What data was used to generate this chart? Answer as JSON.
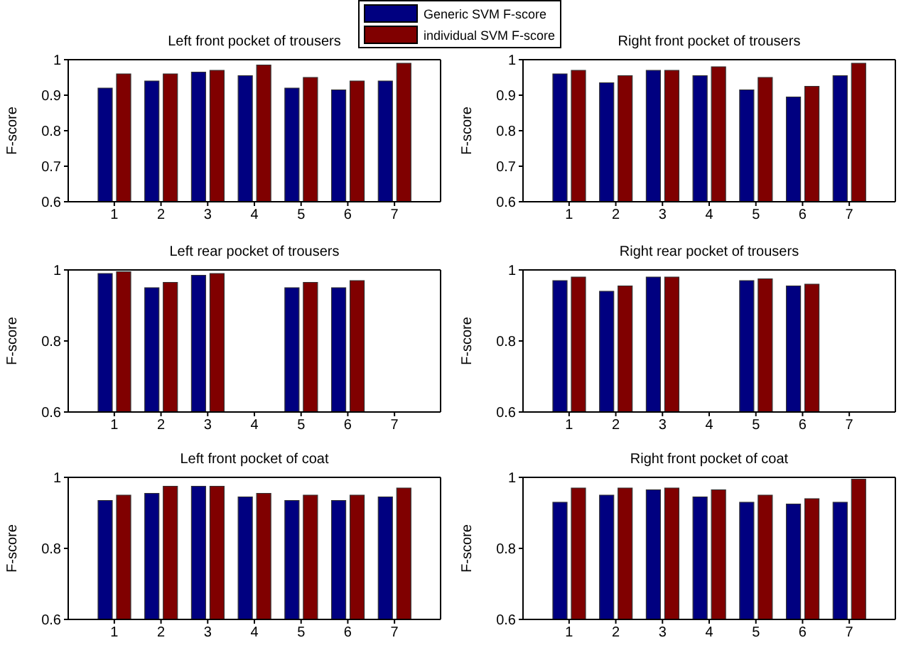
{
  "chart_data": [
    {
      "type": "bar",
      "title": "Left front pocket of trousers",
      "ylabel": "F-score",
      "categories": [
        "1",
        "2",
        "3",
        "4",
        "5",
        "6",
        "7"
      ],
      "ylim": [
        0.6,
        1
      ],
      "yticks": [
        0.6,
        0.7,
        0.8,
        0.9,
        1
      ],
      "legend": "top right",
      "series": [
        {
          "name": "Generic SVM F-score",
          "color": "#000080",
          "values": [
            0.92,
            0.94,
            0.965,
            0.955,
            0.92,
            0.915,
            0.94
          ]
        },
        {
          "name": "individual SVM F-score",
          "color": "#800000",
          "values": [
            0.96,
            0.96,
            0.97,
            0.985,
            0.95,
            0.94,
            0.99
          ]
        }
      ]
    },
    {
      "type": "bar",
      "title": "Right front pocket of trousers",
      "ylabel": "F-score",
      "categories": [
        "1",
        "2",
        "3",
        "4",
        "5",
        "6",
        "7"
      ],
      "ylim": [
        0.6,
        1
      ],
      "yticks": [
        0.6,
        0.7,
        0.8,
        0.9,
        1
      ],
      "series": [
        {
          "color": "#000080",
          "values": [
            0.96,
            0.935,
            0.97,
            0.955,
            0.915,
            0.895,
            0.955
          ]
        },
        {
          "color": "#800000",
          "values": [
            0.97,
            0.955,
            0.97,
            0.98,
            0.95,
            0.925,
            0.99
          ]
        }
      ]
    },
    {
      "type": "bar",
      "title": "Left rear pocket of trousers",
      "ylabel": "F-score",
      "categories": [
        "1",
        "2",
        "3",
        "4",
        "5",
        "6",
        "7"
      ],
      "ylim": [
        0.6,
        1
      ],
      "yticks": [
        0.6,
        0.8,
        1
      ],
      "series": [
        {
          "color": "#000080",
          "values": [
            0.99,
            0.95,
            0.985,
            null,
            0.95,
            0.95,
            null
          ]
        },
        {
          "color": "#800000",
          "values": [
            0.995,
            0.965,
            0.99,
            null,
            0.965,
            0.97,
            null
          ]
        }
      ]
    },
    {
      "type": "bar",
      "title": "Right rear pocket of trousers",
      "ylabel": "F-score",
      "categories": [
        "1",
        "2",
        "3",
        "4",
        "5",
        "6",
        "7"
      ],
      "ylim": [
        0.6,
        1
      ],
      "yticks": [
        0.6,
        0.8,
        1
      ],
      "series": [
        {
          "color": "#000080",
          "values": [
            0.97,
            0.94,
            0.98,
            null,
            0.97,
            0.955,
            null
          ]
        },
        {
          "color": "#800000",
          "values": [
            0.98,
            0.955,
            0.98,
            null,
            0.975,
            0.96,
            null
          ]
        }
      ]
    },
    {
      "type": "bar",
      "title": "Left front pocket of coat",
      "ylabel": "F-score",
      "categories": [
        "1",
        "2",
        "3",
        "4",
        "5",
        "6",
        "7"
      ],
      "ylim": [
        0.6,
        1
      ],
      "yticks": [
        0.6,
        0.8,
        1
      ],
      "series": [
        {
          "color": "#000080",
          "values": [
            0.935,
            0.955,
            0.975,
            0.945,
            0.935,
            0.935,
            0.945
          ]
        },
        {
          "color": "#800000",
          "values": [
            0.95,
            0.975,
            0.975,
            0.955,
            0.95,
            0.95,
            0.97
          ]
        }
      ]
    },
    {
      "type": "bar",
      "title": "Right front pocket of coat",
      "ylabel": "F-score",
      "categories": [
        "1",
        "2",
        "3",
        "4",
        "5",
        "6",
        "7"
      ],
      "ylim": [
        0.6,
        1
      ],
      "yticks": [
        0.6,
        0.8,
        1
      ],
      "series": [
        {
          "color": "#000080",
          "values": [
            0.93,
            0.95,
            0.965,
            0.945,
            0.93,
            0.925,
            0.93
          ]
        },
        {
          "color": "#800000",
          "values": [
            0.97,
            0.97,
            0.97,
            0.965,
            0.95,
            0.94,
            0.995
          ]
        }
      ]
    }
  ]
}
